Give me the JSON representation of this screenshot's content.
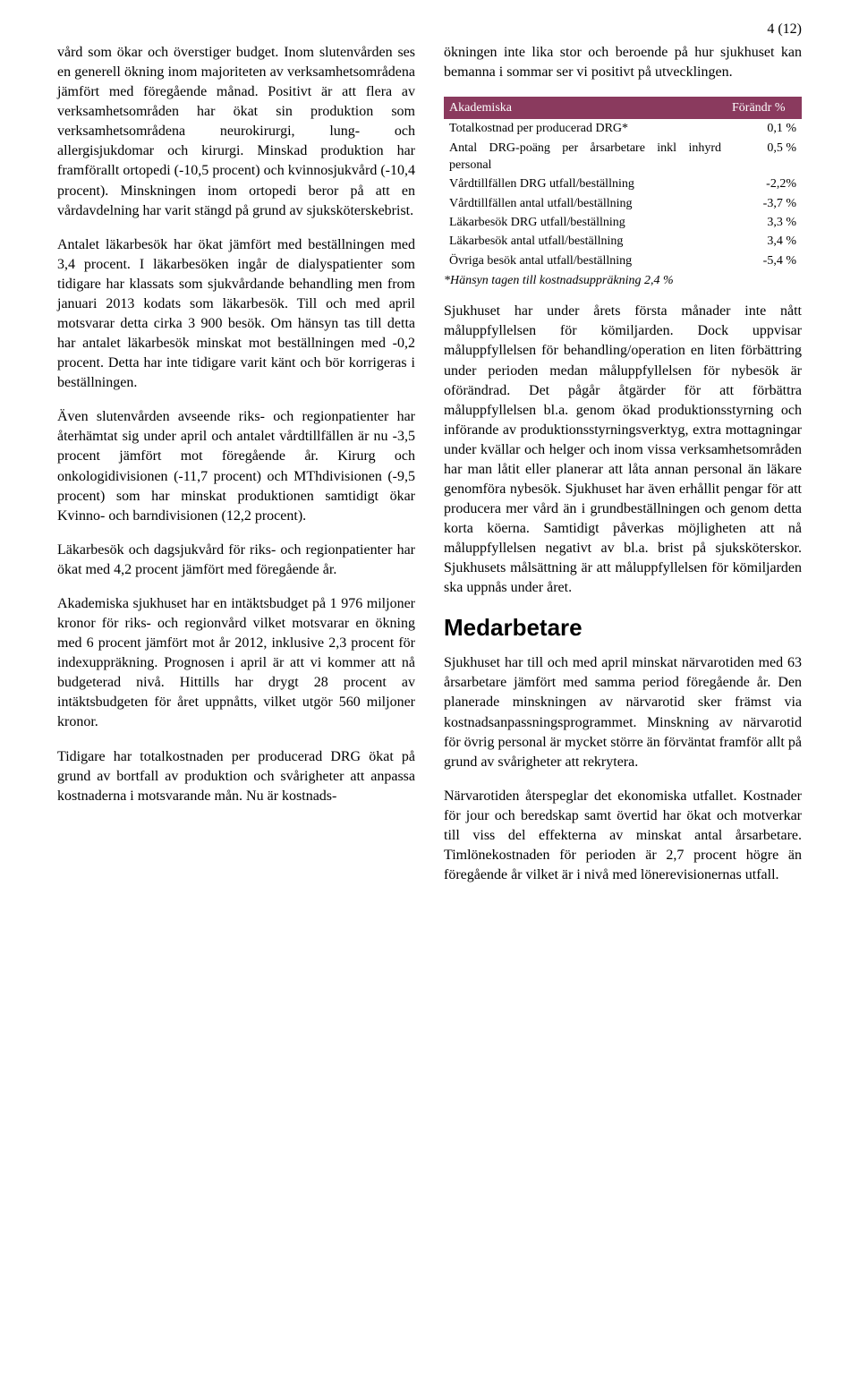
{
  "page_number": "4 (12)",
  "left_column": {
    "p1": "vård som ökar och överstiger budget. Inom slutenvården ses en generell ökning inom majoriteten av verksamhetsområdena jämfört med föregående månad. Positivt är att flera av verksamhetsområden har ökat sin produktion som verksamhetsområdena neurokirurgi, lung- och allergisjukdomar och kirurgi. Minskad produktion har framförallt ortopedi (-10,5 procent) och kvinnosjukvård (-10,4 procent). Minskningen inom ortopedi beror på att en vårdavdelning har varit stängd på grund av sjuksköterskebrist.",
    "p2": "Antalet läkarbesök har ökat jämfört med beställningen med 3,4 procent. I läkarbesöken ingår de dialyspatienter som tidigare har klassats som sjukvårdande behandling men from januari 2013 kodats som läkarbesök. Till och med april motsvarar detta cirka 3 900 besök. Om hänsyn tas till detta har antalet läkarbesök minskat mot beställningen med -0,2 procent. Detta har inte tidigare varit känt och bör korrigeras i beställningen.",
    "p3": "Även slutenvården avseende riks- och regionpatienter har återhämtat sig under april och antalet vårdtillfällen är nu -3,5 procent jämfört mot föregående år. Kirurg och onkologidivisionen (-11,7 procent) och MThdivisionen (-9,5 procent) som har minskat produktionen samtidigt ökar Kvinno- och barndivisionen (12,2 procent).",
    "p4": "Läkarbesök och dagsjukvård för riks- och regionpatienter har ökat med 4,2 procent jämfört med föregående år.",
    "p5": "Akademiska sjukhuset har en intäktsbudget på 1 976 miljoner kronor för riks- och regionvård vilket motsvarar en ökning med 6 procent jämfört mot år 2012, inklusive 2,3 procent för indexuppräkning. Prognosen i april är att vi kommer att nå budgeterad nivå. Hittills har drygt 28 procent av intäktsbudgeten för året uppnåtts, vilket utgör 560 miljoner kronor.",
    "p6": "Tidigare har totalkostnaden per producerad DRG ökat på grund av bortfall av produktion och svårigheter att anpassa kostnaderna i motsvarande mån. Nu är kostnads-"
  },
  "right_column": {
    "p1": "ökningen inte lika stor och beroende på hur sjukhuset kan bemanna i sommar ser vi positivt på utvecklingen.",
    "table": {
      "header_bg": "#8a3a5e",
      "header_label": "Akademiska",
      "header_value": "Förändr %",
      "rows": [
        {
          "label": "Totalkostnad per producerad DRG*",
          "value": "0,1 %"
        },
        {
          "label": "Antal DRG-poäng per årsarbetare inkl inhyrd personal",
          "value": "0,5 %"
        },
        {
          "label": "Vårdtillfällen DRG utfall/beställning",
          "value": "-2,2%"
        },
        {
          "label": "Vårdtillfällen antal utfall/beställning",
          "value": "-3,7 %"
        },
        {
          "label": "Läkarbesök DRG utfall/beställning",
          "value": "3,3 %"
        },
        {
          "label": "Läkarbesök antal utfall/beställning",
          "value": "3,4 %"
        },
        {
          "label": "Övriga besök antal utfall/beställning",
          "value": "-5,4 %"
        }
      ],
      "footnote": "*Hänsyn tagen till kostnadsuppräkning 2,4 %"
    },
    "p2": "Sjukhuset har under årets första månader inte nått måluppfyllelsen för kömiljarden. Dock uppvisar måluppfyllelsen för behandling/operation en liten förbättring under perioden medan måluppfyllelsen för nybesök är oförändrad. Det pågår åtgärder för att förbättra måluppfyllelsen bl.a. genom ökad produktionsstyrning och införande av produktionsstyrningsverktyg, extra mottagningar under kvällar och helger och inom vissa verksamhetsområden har man låtit eller planerar att låta annan personal än läkare genomföra nybesök. Sjukhuset har även erhållit pengar för att producera mer vård än i grundbeställningen och genom detta korta köerna. Samtidigt påverkas möjligheten att nå måluppfyllelsen negativt av bl.a. brist på sjuksköterskor. Sjukhusets målsättning är att måluppfyllelsen för kömiljarden ska uppnås under året.",
    "heading": "Medarbetare",
    "p3": "Sjukhuset har till och med april minskat närvarotiden med 63 årsarbetare jämfört med samma period föregående år. Den planerade minskningen av närvarotid sker främst via kostnadsanpassningsprogrammet. Minskning av närvarotid för övrig personal är mycket större än förväntat framför allt på grund av svårigheter att rekrytera.",
    "p4": "Närvarotiden återspeglar det ekonomiska utfallet. Kostnader för jour och beredskap samt övertid har ökat och motverkar till viss del effekterna av minskat antal årsarbetare. Timlönekostnaden för perioden är 2,7 procent högre än föregående år vilket är i nivå med lönerevisionernas utfall."
  }
}
